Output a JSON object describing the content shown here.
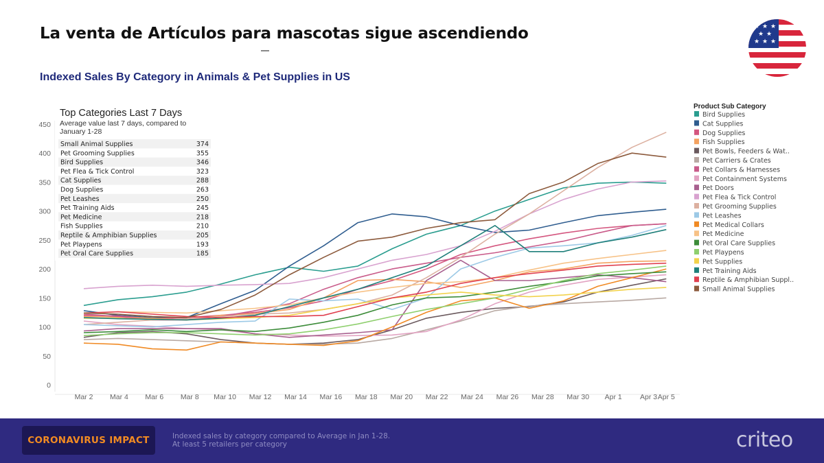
{
  "slide": {
    "headline": "La venta de Artículos para mascotas sigue ascendiendo",
    "subtitle": "Indexed Sales By Category in Animals & Pet Supplies in US"
  },
  "footer": {
    "badge": "CORONAVIRUS IMPACT",
    "note_line1": "Indexed sales by category compared to Average in Jan 1-28.",
    "note_line2": "At least 5 retailers per category",
    "logo": "criteo"
  },
  "chart_data": {
    "type": "line",
    "ylim": [
      0,
      450
    ],
    "yticks": [
      0,
      50,
      100,
      150,
      200,
      250,
      300,
      350,
      400,
      450
    ],
    "x_tick_labels": [
      "Mar 2",
      "Mar 4",
      "Mar 6",
      "Mar 8",
      "Mar 10",
      "Mar 12",
      "Mar 14",
      "Mar 16",
      "Mar 18",
      "Mar 20",
      "Mar 22",
      "Mar 24",
      "Mar 26",
      "Mar 28",
      "Mar 30",
      "Apr 1",
      "Apr 3",
      "Apr 5"
    ],
    "x_tick_days": [
      0,
      2,
      4,
      6,
      8,
      10,
      12,
      14,
      16,
      18,
      20,
      22,
      24,
      26,
      28,
      30,
      32,
      33
    ],
    "x_range_days": [
      0,
      34
    ],
    "legend_title": "Product Sub Category",
    "legend_position": "right",
    "grid": false,
    "series": [
      {
        "name": "Bird Supplies",
        "color": "#2a9d8f",
        "values": [
          137,
          147,
          152,
          160,
          174,
          190,
          203,
          196,
          205,
          235,
          260,
          275,
          300,
          320,
          340,
          348,
          350,
          348
        ]
      },
      {
        "name": "Cat Supplies",
        "color": "#2f5d8f",
        "values": [
          128,
          120,
          116,
          116,
          140,
          163,
          205,
          240,
          280,
          295,
          290,
          275,
          263,
          267,
          280,
          292,
          298,
          303
        ]
      },
      {
        "name": "Dog Supplies",
        "color": "#d4567f",
        "values": [
          120,
          119,
          114,
          116,
          120,
          125,
          133,
          145,
          165,
          180,
          200,
          225,
          240,
          252,
          262,
          270,
          275,
          278
        ]
      },
      {
        "name": "Fish Supplies",
        "color": "#f4a261",
        "values": [
          118,
          117,
          115,
          112,
          120,
          123,
          130,
          150,
          180,
          182,
          178,
          168,
          180,
          195,
          200,
          210,
          213,
          214
        ]
      },
      {
        "name": "Pet Bowls, Feeders & Wat..",
        "color": "#6b5a5e",
        "values": [
          82,
          90,
          92,
          88,
          78,
          72,
          70,
          72,
          78,
          95,
          115,
          125,
          132,
          135,
          143,
          160,
          172,
          183
        ]
      },
      {
        "name": "Pet Carriers & Crates",
        "color": "#b8a9a3",
        "values": [
          78,
          80,
          78,
          76,
          74,
          72,
          70,
          70,
          72,
          80,
          95,
          110,
          128,
          136,
          140,
          143,
          146,
          150
        ]
      },
      {
        "name": "Pet Collars & Harnesses",
        "color": "#c95b8a",
        "values": [
          122,
          118,
          112,
          112,
          118,
          128,
          140,
          165,
          185,
          200,
          210,
          220,
          228,
          238,
          248,
          262,
          275,
          278
        ]
      },
      {
        "name": "Pet Containment Systems",
        "color": "#e2a3c2",
        "values": [
          110,
          104,
          101,
          97,
          95,
          88,
          86,
          84,
          85,
          86,
          92,
          112,
          140,
          160,
          172,
          182,
          186,
          190
        ]
      },
      {
        "name": "Pet Doors",
        "color": "#a8608f",
        "values": [
          93,
          97,
          97,
          97,
          97,
          88,
          82,
          86,
          90,
          95,
          180,
          215,
          180,
          180,
          185,
          190,
          185,
          178
        ]
      },
      {
        "name": "Pet Flea & Tick Control",
        "color": "#d8a2cf",
        "values": [
          166,
          170,
          172,
          170,
          172,
          173,
          175,
          185,
          200,
          215,
          225,
          240,
          265,
          295,
          320,
          338,
          350,
          352
        ]
      },
      {
        "name": "Pet Grooming Supplies",
        "color": "#dcb0a0",
        "values": [
          104,
          108,
          112,
          114,
          118,
          122,
          124,
          130,
          140,
          155,
          185,
          220,
          260,
          295,
          335,
          375,
          410,
          436
        ]
      },
      {
        "name": "Pet Leashes",
        "color": "#9cc9e6",
        "values": [
          104,
          102,
          100,
          104,
          108,
          110,
          148,
          145,
          148,
          130,
          150,
          200,
          220,
          236,
          240,
          245,
          258,
          275
        ]
      },
      {
        "name": "Pet Medical Collars",
        "color": "#f08a24",
        "values": [
          72,
          70,
          62,
          60,
          74,
          72,
          70,
          68,
          76,
          100,
          125,
          145,
          150,
          132,
          145,
          170,
          185,
          200
        ]
      },
      {
        "name": "Pet Medicine",
        "color": "#f7c287",
        "values": [
          123,
          126,
          125,
          124,
          128,
          132,
          138,
          150,
          160,
          168,
          175,
          178,
          185,
          198,
          210,
          218,
          225,
          232
        ]
      },
      {
        "name": "Pet Oral Care Supplies",
        "color": "#3d8c3a",
        "values": [
          90,
          92,
          95,
          92,
          95,
          92,
          98,
          108,
          120,
          138,
          150,
          152,
          160,
          170,
          178,
          188,
          192,
          195
        ]
      },
      {
        "name": "Pet Playpens",
        "color": "#8fcf6e",
        "values": [
          85,
          88,
          90,
          90,
          88,
          86,
          88,
          95,
          105,
          118,
          130,
          140,
          150,
          165,
          180,
          192,
          198,
          205
        ]
      },
      {
        "name": "Pet Supplies",
        "color": "#f2d24b",
        "values": [
          115,
          115,
          113,
          112,
          114,
          116,
          120,
          130,
          140,
          150,
          155,
          160,
          155,
          152,
          155,
          160,
          165,
          168
        ]
      },
      {
        "name": "Pet Training Aids",
        "color": "#1f7f7a",
        "values": [
          116,
          114,
          113,
          112,
          115,
          120,
          135,
          150,
          165,
          185,
          205,
          240,
          275,
          230,
          230,
          245,
          255,
          268
        ]
      },
      {
        "name": "Reptile & Amphibian Suppl..",
        "color": "#e0404f",
        "values": [
          124,
          126,
          122,
          118,
          116,
          118,
          118,
          120,
          135,
          150,
          160,
          175,
          185,
          192,
          198,
          205,
          208,
          210
        ]
      },
      {
        "name": "Small Animal Supplies",
        "color": "#8c5a3c",
        "values": [
          124,
          122,
          118,
          116,
          130,
          155,
          190,
          220,
          248,
          255,
          270,
          280,
          285,
          330,
          350,
          382,
          400,
          393
        ]
      }
    ],
    "overlay_table": {
      "title": "Top Categories Last 7 Days",
      "subtitle_line1": "Average value last 7 days, compared to",
      "subtitle_line2": "January 1-28",
      "rows": [
        {
          "category": "Small Animal Supplies",
          "value": "374"
        },
        {
          "category": "Pet Grooming Supplies",
          "value": "355"
        },
        {
          "category": "Bird Supplies",
          "value": "346"
        },
        {
          "category": "Pet Flea & Tick Control",
          "value": "323"
        },
        {
          "category": "Cat Supplies",
          "value": "288"
        },
        {
          "category": "Dog Supplies",
          "value": "263"
        },
        {
          "category": "Pet Leashes",
          "value": "250"
        },
        {
          "category": "Pet Training Aids",
          "value": "245"
        },
        {
          "category": "Pet Medicine",
          "value": "218"
        },
        {
          "category": "Fish Supplies",
          "value": "210"
        },
        {
          "category": "Reptile & Amphibian Supplies",
          "value": "205"
        },
        {
          "category": "Pet Playpens",
          "value": "193"
        },
        {
          "category": "Pet Oral Care Supplies",
          "value": "185"
        }
      ]
    }
  }
}
